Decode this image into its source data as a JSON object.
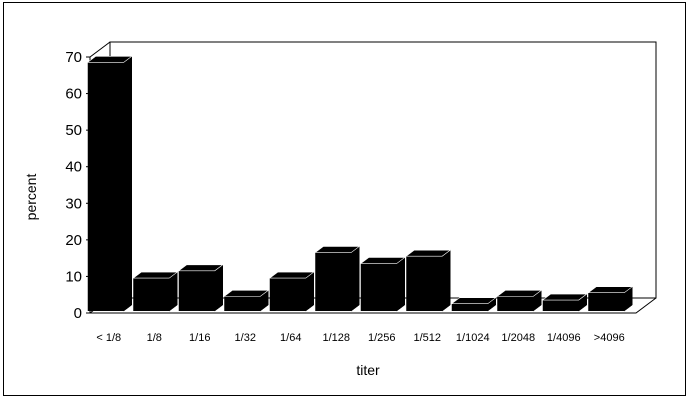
{
  "chart_data": {
    "type": "bar",
    "style": "3d",
    "categories": [
      "< 1/8",
      "1/8",
      "1/16",
      "1/32",
      "1/64",
      "1/128",
      "1/256",
      "1/512",
      "1/1024",
      "1/2048",
      "1/4096",
      ">4096"
    ],
    "values": [
      68,
      9,
      11,
      4,
      9,
      16,
      13,
      15,
      2,
      4,
      3,
      5
    ],
    "xlabel": "titer",
    "ylabel": "percent",
    "yticks": [
      "0",
      "10",
      "20",
      "30",
      "40",
      "50",
      "60",
      "70"
    ],
    "ylim": [
      0,
      70
    ],
    "grid": false,
    "bar_color": "#000000"
  }
}
